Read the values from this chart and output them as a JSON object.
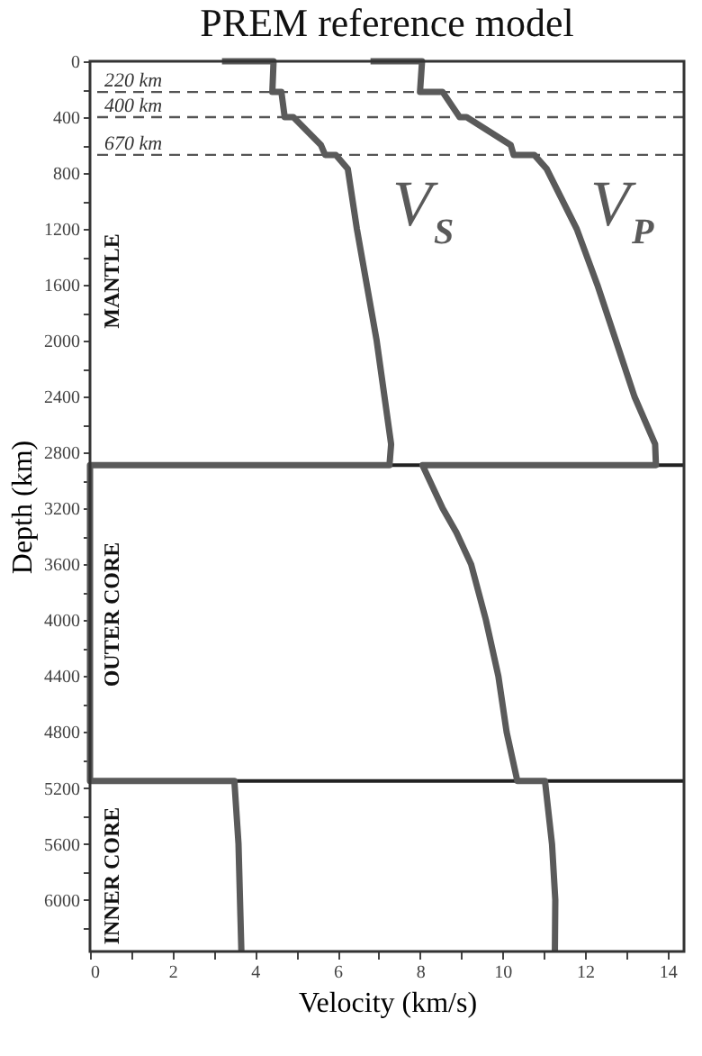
{
  "chart_data": {
    "type": "line",
    "title": "PREM reference model",
    "xlabel": "Velocity (km/s)",
    "ylabel": "Depth (km)",
    "xlim": [
      0,
      14.4
    ],
    "ylim": [
      6370,
      0
    ],
    "xticks": [
      0,
      {
        "value": 1,
        "label": null
      },
      2,
      {
        "value": 3,
        "label": null
      },
      4,
      {
        "value": 5,
        "label": null
      },
      6,
      {
        "value": 7,
        "label": null
      },
      8,
      {
        "value": 9,
        "label": null
      },
      10,
      {
        "value": 11,
        "label": null
      },
      12,
      {
        "value": 13,
        "label": null
      },
      14
    ],
    "yticks": [
      0,
      {
        "value": 200,
        "label": null
      },
      400,
      {
        "value": 600,
        "label": null
      },
      800,
      {
        "value": 1000,
        "label": null
      },
      1200,
      {
        "value": 1400,
        "label": null
      },
      1600,
      {
        "value": 1800,
        "label": null
      },
      2000,
      {
        "value": 2200,
        "label": null
      },
      2400,
      {
        "value": 2600,
        "label": null
      },
      2800,
      {
        "value": 3000,
        "label": null
      },
      3200,
      {
        "value": 3400,
        "label": null
      },
      3600,
      {
        "value": 3800,
        "label": null
      },
      4000,
      {
        "value": 4200,
        "label": null
      },
      4400,
      {
        "value": 4600,
        "label": null
      },
      4800,
      {
        "value": 5000,
        "label": null
      },
      5200,
      {
        "value": 5400,
        "label": null
      },
      5600,
      {
        "value": 5800,
        "label": null
      },
      6000,
      {
        "value": 6200,
        "label": null
      }
    ],
    "grid": false,
    "marker": "none",
    "line_style": "solid",
    "series": [
      {
        "name": "V$_{S}$",
        "color": "#5a5a5a",
        "x": [
          3.2,
          4.45,
          4.42,
          4.64,
          4.72,
          4.93,
          5.6,
          5.7,
          5.96,
          6.25,
          6.47,
          6.95,
          7.3,
          7.26,
          0,
          0,
          3.5,
          3.6,
          3.67
        ],
        "values": [
          0,
          0,
          220,
          220,
          400,
          400,
          600,
          670,
          670,
          770,
          1200,
          2000,
          2740,
          2890,
          2890,
          5150,
          5150,
          5600,
          6370
        ]
      },
      {
        "name": "V$_{P}$",
        "color": "#5a5a5a",
        "x": [
          6.8,
          8.05,
          8.0,
          8.55,
          8.96,
          9.13,
          10.2,
          10.27,
          10.77,
          11.07,
          11.8,
          12.3,
          12.75,
          13.2,
          13.7,
          13.72,
          8.06,
          8.55,
          8.88,
          9.24,
          9.6,
          9.9,
          10.1,
          10.36,
          11.03,
          11.2,
          11.28,
          11.27
        ],
        "values": [
          0,
          0,
          220,
          220,
          400,
          400,
          600,
          670,
          670,
          770,
          1200,
          1600,
          2000,
          2400,
          2740,
          2890,
          2890,
          3200,
          3370,
          3600,
          4000,
          4400,
          4800,
          5150,
          5150,
          5600,
          6000,
          6370
        ]
      }
    ],
    "ref_lines": [
      {
        "axis": "y",
        "value": 220,
        "label": "220 km",
        "line_style": "dashed",
        "color": "#555555"
      },
      {
        "axis": "y",
        "value": 400,
        "label": "400 km",
        "line_style": "dashed",
        "color": "#555555"
      },
      {
        "axis": "y",
        "value": 670,
        "label": "670 km",
        "line_style": "dashed",
        "color": "#555555"
      },
      {
        "axis": "y",
        "value": 2890,
        "color": "#222222"
      },
      {
        "axis": "y",
        "value": 5150,
        "color": "#222222"
      }
    ],
    "annotations": [
      "MANTLE",
      "OUTER CORE",
      "INNER CORE"
    ]
  }
}
